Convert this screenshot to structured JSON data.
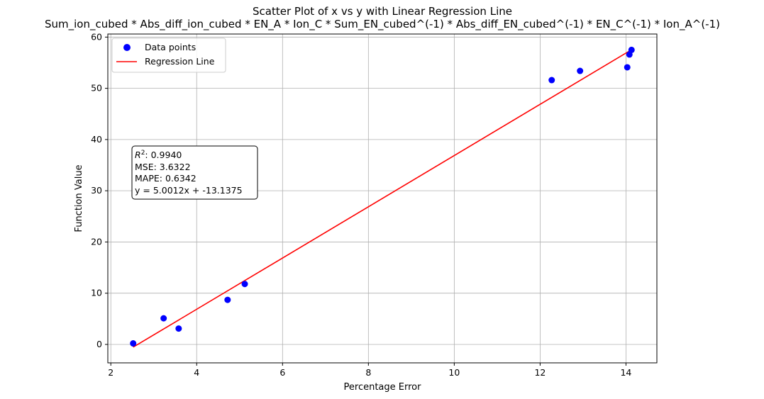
{
  "chart_data": {
    "type": "scatter",
    "title": "Scatter Plot of x vs y with Linear Regression Line",
    "subtitle": "Sum_ion_cubed * Abs_diff_ion_cubed * EN_A * Ion_C * Sum_EN_cubed^(-1) * Abs_diff_EN_cubed^(-1) * EN_C^(-1) * Ion_A^(-1)",
    "xlabel": "Percentage Error",
    "ylabel": "Function Value",
    "xlim": [
      1.93,
      14.72
    ],
    "ylim": [
      -3.6,
      60.6
    ],
    "xticks": [
      2,
      4,
      6,
      8,
      10,
      12,
      14
    ],
    "yticks": [
      0,
      10,
      20,
      30,
      40,
      50,
      60
    ],
    "grid": true,
    "legend_position": "upper-left",
    "series": [
      {
        "name": "Data points",
        "kind": "scatter",
        "color": "#0000ff",
        "points": [
          {
            "x": 2.52,
            "y": 0.2
          },
          {
            "x": 3.23,
            "y": 5.1
          },
          {
            "x": 3.58,
            "y": 3.1
          },
          {
            "x": 4.72,
            "y": 8.7
          },
          {
            "x": 5.12,
            "y": 11.8
          },
          {
            "x": 12.27,
            "y": 51.6
          },
          {
            "x": 12.93,
            "y": 53.4
          },
          {
            "x": 14.03,
            "y": 54.1
          },
          {
            "x": 14.08,
            "y": 56.6
          },
          {
            "x": 14.13,
            "y": 57.5
          }
        ]
      },
      {
        "name": "Regression Line",
        "kind": "line",
        "color": "#ff0000",
        "slope": 5.0012,
        "intercept": -13.1375,
        "x_range": [
          2.52,
          14.13
        ]
      }
    ],
    "stats": {
      "r2": "0.9940",
      "mse": "3.6322",
      "mape": "0.6342",
      "equation": "y = 5.0012x + -13.1375"
    }
  },
  "stats_labels": {
    "r2_prefix": "R",
    "r2_sup": "2",
    "r2_value": ": 0.9940",
    "mse": "MSE: 3.6322",
    "mape": "MAPE: 0.6342",
    "equation": "y = 5.0012x + -13.1375"
  }
}
